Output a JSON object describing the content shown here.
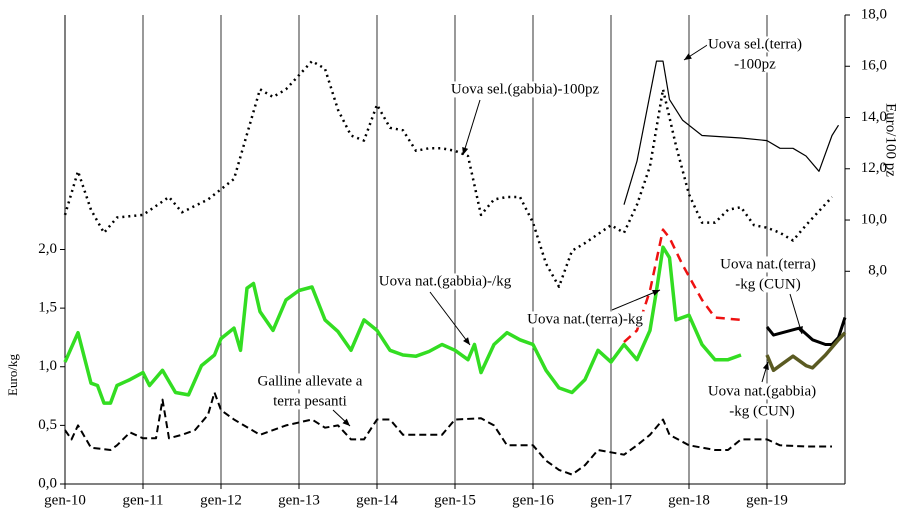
{
  "chart_data": {
    "type": "line",
    "ylabel": "Euro/kg",
    "y2label": "Euro/100 pz",
    "xlim": [
      0,
      120
    ],
    "xticks": [
      {
        "value": 0,
        "label": "gen-10"
      },
      {
        "value": 12,
        "label": "gen-11"
      },
      {
        "value": 24,
        "label": "gen-12"
      },
      {
        "value": 36,
        "label": "gen-13"
      },
      {
        "value": 48,
        "label": "gen-14"
      },
      {
        "value": 60,
        "label": "gen-15"
      },
      {
        "value": 72,
        "label": "gen-16"
      },
      {
        "value": 84,
        "label": "gen-17"
      },
      {
        "value": 96,
        "label": "gen-18"
      },
      {
        "value": 108,
        "label": "gen-19"
      }
    ],
    "ylim": [
      0,
      4.0
    ],
    "yticks": [
      {
        "value": 0,
        "label": "0,0"
      },
      {
        "value": 0.5,
        "label": "0,5"
      },
      {
        "value": 1.0,
        "label": "1,0"
      },
      {
        "value": 1.5,
        "label": "1,5"
      },
      {
        "value": 2.0,
        "label": "2,0"
      }
    ],
    "y2lim": [
      -0.3,
      18
    ],
    "y2ticks": [
      {
        "value": 8,
        "label": "8,0"
      },
      {
        "value": 10,
        "label": "10,0"
      },
      {
        "value": 12,
        "label": "12,0"
      },
      {
        "value": 14,
        "label": "14,0"
      },
      {
        "value": 16,
        "label": "16,0"
      },
      {
        "value": 18,
        "label": "18,0"
      }
    ],
    "grid": "x",
    "series": [
      {
        "name": [
          "Uova sel.(gabbia)-100pz"
        ],
        "axis": "y2",
        "color": "#000000",
        "dash": "2,4",
        "width": 2.5,
        "x": [
          0,
          2,
          4,
          6,
          8,
          12,
          16,
          18,
          22,
          26,
          30,
          32,
          34,
          38,
          40,
          42,
          44,
          46,
          48,
          50,
          52,
          54,
          56,
          58,
          60,
          62,
          64,
          66,
          68,
          70,
          72,
          74,
          76,
          78,
          80,
          84,
          86,
          88,
          90,
          92,
          94,
          96,
          98,
          100,
          102,
          104,
          106,
          108,
          110,
          112,
          114,
          118
        ],
        "values": [
          10.2,
          11.9,
          10.4,
          9.5,
          10.1,
          10.2,
          10.9,
          10.3,
          10.8,
          11.6,
          15.1,
          14.8,
          15.1,
          16.2,
          15.9,
          14.3,
          13.3,
          13.1,
          14.5,
          13.6,
          13.5,
          12.7,
          12.8,
          12.8,
          12.7,
          12.5,
          10.2,
          10.8,
          10.9,
          10.9,
          9.9,
          8.3,
          7.4,
          8.8,
          9.1,
          9.8,
          9.5,
          10.6,
          12.1,
          15.1,
          12.9,
          11.0,
          9.9,
          9.9,
          10.4,
          10.5,
          9.8,
          9.7,
          9.5,
          9.2,
          9.8,
          10.9
        ]
      },
      {
        "name": [
          "Uova sel.(terra)",
          "-100pz"
        ],
        "axis": "y2",
        "color": "#000000",
        "dash": "",
        "width": 1.2,
        "x": [
          86,
          88,
          90,
          91,
          92,
          93,
          95,
          98,
          104,
          108,
          110,
          112,
          114,
          116,
          118,
          119
        ],
        "values": [
          10.6,
          12.3,
          14.9,
          16.2,
          16.2,
          14.7,
          13.9,
          13.3,
          13.2,
          13.1,
          12.8,
          12.8,
          12.5,
          11.9,
          13.3,
          13.7
        ]
      },
      {
        "name": [
          "Uova nat.(gabbia)-/kg"
        ],
        "axis": "y",
        "color": "#33dd22",
        "dash": "",
        "width": 3.5,
        "x": [
          0,
          2,
          4,
          5,
          6,
          7,
          8,
          10,
          12,
          13,
          15,
          17,
          19,
          21,
          23,
          24,
          26,
          27,
          28,
          29,
          30,
          32,
          34,
          36,
          38,
          40,
          42,
          44,
          46,
          48,
          50,
          52,
          54,
          56,
          58,
          60,
          62,
          63,
          64,
          66,
          68,
          70,
          72,
          74,
          76,
          78,
          80,
          82,
          84,
          86,
          88,
          90,
          91,
          92,
          93,
          94,
          96,
          98,
          100,
          102,
          104
        ],
        "values": [
          1.04,
          1.29,
          0.86,
          0.84,
          0.69,
          0.69,
          0.84,
          0.89,
          0.95,
          0.84,
          0.97,
          0.78,
          0.76,
          1.01,
          1.1,
          1.24,
          1.33,
          1.14,
          1.67,
          1.71,
          1.47,
          1.31,
          1.57,
          1.65,
          1.68,
          1.4,
          1.3,
          1.14,
          1.4,
          1.31,
          1.14,
          1.1,
          1.09,
          1.13,
          1.19,
          1.14,
          1.06,
          1.19,
          0.95,
          1.19,
          1.29,
          1.23,
          1.19,
          0.97,
          0.82,
          0.78,
          0.89,
          1.14,
          1.04,
          1.19,
          1.06,
          1.31,
          1.65,
          2.02,
          1.93,
          1.4,
          1.44,
          1.19,
          1.06,
          1.06,
          1.1
        ]
      },
      {
        "name": [
          "Uova nat.(terra)-kg"
        ],
        "axis": "y",
        "color": "#ee1111",
        "dash": "9,6",
        "width": 2.5,
        "x": [
          86,
          88,
          90,
          92,
          93,
          95,
          98,
          100,
          104
        ],
        "values": [
          1.21,
          1.31,
          1.65,
          2.17,
          2.1,
          1.87,
          1.57,
          1.42,
          1.4
        ]
      },
      {
        "name": [
          "Galline allevate a",
          "terra pesanti"
        ],
        "axis": "y",
        "color": "#000000",
        "dash": "7,4",
        "width": 2,
        "x": [
          0,
          1,
          2,
          4,
          7,
          8,
          10,
          12,
          14,
          15,
          16,
          18,
          20,
          22,
          23,
          24,
          26,
          30,
          34,
          38,
          40,
          42,
          44,
          46,
          48,
          50,
          52,
          58,
          60,
          64,
          66,
          68,
          72,
          74,
          76,
          78,
          80,
          82,
          86,
          88,
          90,
          92,
          93,
          96,
          100,
          102,
          104,
          108,
          110,
          114,
          118
        ],
        "values": [
          0.46,
          0.38,
          0.5,
          0.31,
          0.29,
          0.33,
          0.44,
          0.39,
          0.39,
          0.72,
          0.39,
          0.42,
          0.46,
          0.59,
          0.78,
          0.63,
          0.55,
          0.42,
          0.5,
          0.55,
          0.48,
          0.5,
          0.38,
          0.38,
          0.55,
          0.55,
          0.42,
          0.42,
          0.55,
          0.56,
          0.5,
          0.33,
          0.33,
          0.2,
          0.12,
          0.08,
          0.16,
          0.29,
          0.25,
          0.33,
          0.42,
          0.55,
          0.42,
          0.33,
          0.29,
          0.29,
          0.38,
          0.38,
          0.33,
          0.32,
          0.32
        ]
      },
      {
        "name": [
          "Uova nat.(terra)",
          "-kg (CUN)"
        ],
        "axis": "y",
        "color": "#000000",
        "dash": "",
        "width": 3,
        "x": [
          108,
          109,
          111,
          113,
          115,
          117,
          118,
          119,
          120
        ],
        "values": [
          1.34,
          1.27,
          1.3,
          1.33,
          1.23,
          1.19,
          1.19,
          1.25,
          1.42
        ]
      },
      {
        "name": [
          "Uova nat.(gabbia)",
          "-kg (CUN)"
        ],
        "axis": "y",
        "color": "#5a5a22",
        "dash": "",
        "width": 3.5,
        "x": [
          108,
          109,
          110,
          112,
          114,
          115,
          117,
          119,
          120
        ],
        "values": [
          1.1,
          0.97,
          1.01,
          1.09,
          1.01,
          0.99,
          1.1,
          1.23,
          1.29
        ]
      }
    ]
  }
}
